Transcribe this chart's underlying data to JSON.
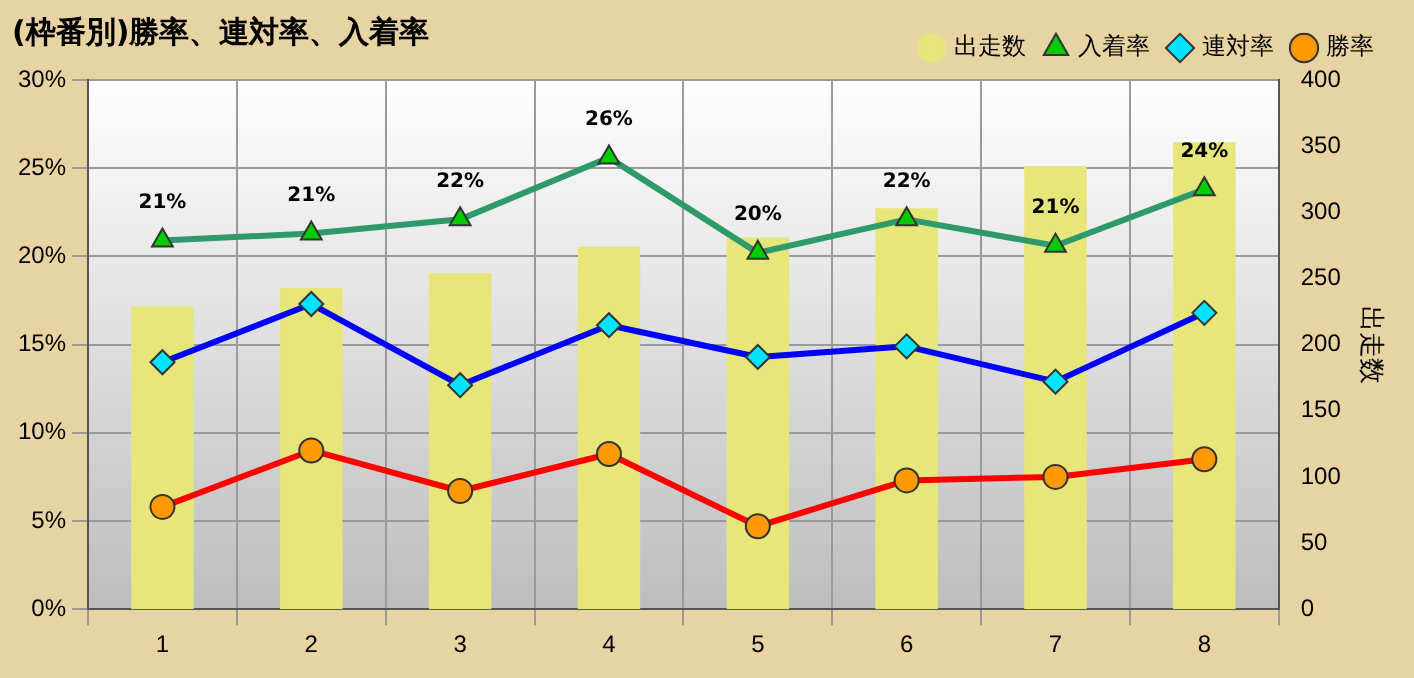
{
  "chart_data": {
    "type": "bar",
    "title": "(枠番別)勝率、連対率、入着率",
    "categories": [
      "1",
      "2",
      "3",
      "4",
      "5",
      "6",
      "7",
      "8"
    ],
    "series": [
      {
        "name": "出走数",
        "axis": "y2",
        "color": "#e6e67a",
        "values": [
          229,
          243,
          254,
          274,
          281,
          303,
          335,
          353
        ]
      },
      {
        "name": "入着率",
        "type": "line",
        "marker": "triangle",
        "color": "#2e9a6a",
        "values": [
          20.9,
          21.3,
          22.1,
          25.6,
          20.2,
          22.1,
          20.6,
          23.8
        ],
        "value_labels": [
          "21%",
          "21%",
          "22%",
          "26%",
          "20%",
          "22%",
          "21%",
          "24%"
        ]
      },
      {
        "name": "連対率",
        "type": "line",
        "marker": "diamond",
        "color": "#0000ff",
        "values": [
          14.0,
          17.3,
          12.7,
          16.1,
          14.3,
          14.9,
          12.9,
          16.8
        ]
      },
      {
        "name": "勝率",
        "type": "line",
        "marker": "circle",
        "color": "#ff0000",
        "values": [
          5.8,
          9.0,
          6.7,
          8.8,
          4.7,
          7.3,
          7.5,
          8.5
        ]
      }
    ],
    "ylim": [
      0,
      30
    ],
    "yticks": [
      {
        "value": 0,
        "label": "0%"
      },
      {
        "value": 5,
        "label": "5%"
      },
      {
        "value": 10,
        "label": "10%"
      },
      {
        "value": 15,
        "label": "15%"
      },
      {
        "value": 20,
        "label": "20%"
      },
      {
        "value": 25,
        "label": "25%"
      },
      {
        "value": 30,
        "label": "30%"
      }
    ],
    "y2lim": [
      0,
      400
    ],
    "y2ticks": [
      0,
      50,
      100,
      150,
      200,
      250,
      300,
      350,
      400
    ],
    "y2label": "出走数",
    "grid": true,
    "legend": "top right"
  }
}
